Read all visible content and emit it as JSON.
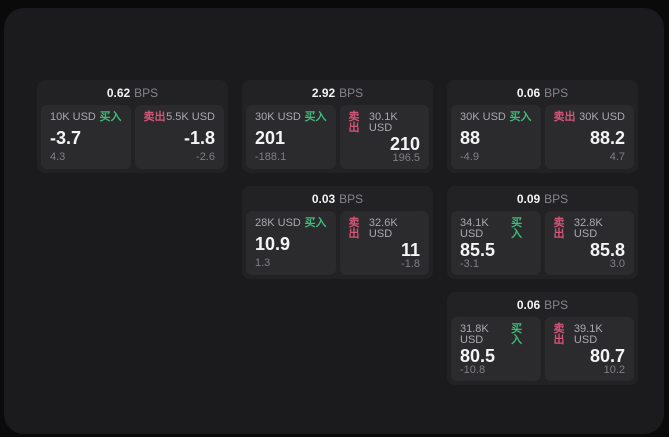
{
  "labels": {
    "bps_unit": "BPS",
    "buy": "买入",
    "sell": "卖出"
  },
  "colors": {
    "page_background": "#0a0a0b",
    "surface_background": "#1b1b1d",
    "card_background": "#222225",
    "panel_background": "#2b2b2e",
    "buy_green": "#3fbb78",
    "sell_red": "#d25577",
    "primary_text": "#f4f4f6",
    "secondary_text": "#a9a9af",
    "muted_text": "#7f7f85"
  },
  "cards": [
    {
      "bps": "0.62",
      "buy": {
        "amount": "10K USD",
        "price": "-3.7",
        "delta": "4.3"
      },
      "sell": {
        "amount": "5.5K USD",
        "price": "-1.8",
        "delta": "-2.6"
      }
    },
    {
      "bps": "2.92",
      "buy": {
        "amount": "30K USD",
        "price": "201",
        "delta": "-188.1"
      },
      "sell": {
        "amount": "30.1K USD",
        "price": "210",
        "delta": "196.5"
      }
    },
    {
      "bps": "0.06",
      "buy": {
        "amount": "30K USD",
        "price": "88",
        "delta": "-4.9"
      },
      "sell": {
        "amount": "30K USD",
        "price": "88.2",
        "delta": "4.7"
      }
    },
    {
      "bps": "0.03",
      "buy": {
        "amount": "28K USD",
        "price": "10.9",
        "delta": "1.3"
      },
      "sell": {
        "amount": "32.6K USD",
        "price": "11",
        "delta": "-1.8"
      }
    },
    {
      "bps": "0.09",
      "buy": {
        "amount": "34.1K USD",
        "price": "85.5",
        "delta": "-3.1"
      },
      "sell": {
        "amount": "32.8K USD",
        "price": "85.8",
        "delta": "3.0"
      }
    },
    {
      "bps": "0.06",
      "buy": {
        "amount": "31.8K USD",
        "price": "80.5",
        "delta": "-10.8"
      },
      "sell": {
        "amount": "39.1K USD",
        "price": "80.7",
        "delta": "10.2"
      }
    }
  ]
}
